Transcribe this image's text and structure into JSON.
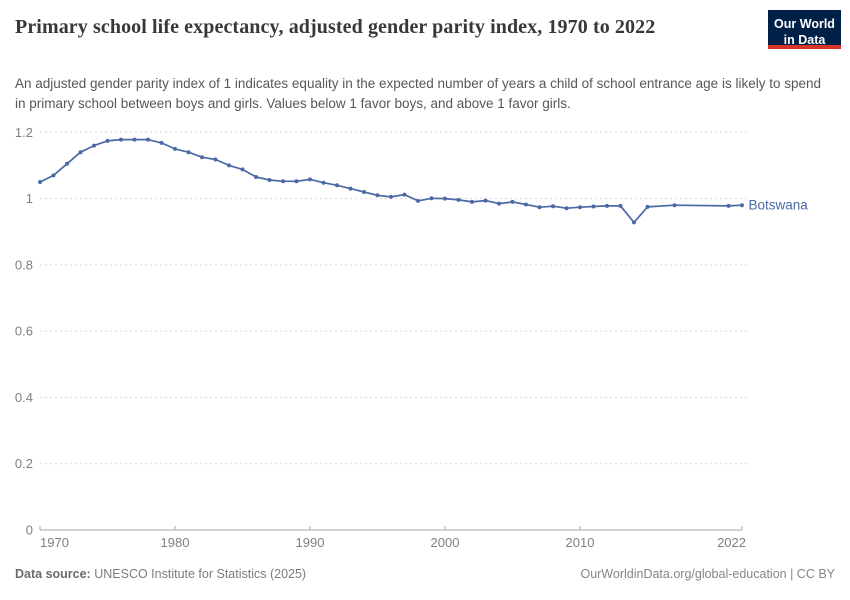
{
  "header": {
    "title": "Primary school life expectancy, adjusted gender parity index, 1970 to 2022",
    "subtitle": "An adjusted gender parity index of 1 indicates equality in the expected number of years a child of school entrance age is likely to spend in primary school between boys and girls. Values below 1 favor boys, and above 1 favor girls."
  },
  "logo": {
    "line1": "Our World",
    "line2": "in Data",
    "bg_color": "#002147",
    "bar_color": "#d8352a"
  },
  "chart_data": {
    "type": "line",
    "title": "Primary school life expectancy, adjusted gender parity index, 1970 to 2022",
    "xlabel": "",
    "ylabel": "",
    "xlim": [
      1970,
      2022
    ],
    "ylim": [
      0,
      1.2
    ],
    "xticks": [
      1970,
      1980,
      1990,
      2000,
      2010,
      2022
    ],
    "yticks": [
      0,
      0.2,
      0.4,
      0.6,
      0.8,
      1,
      1.2
    ],
    "grid": "horizontal-dashed",
    "legend_position": "label-at-line-end",
    "series": [
      {
        "name": "Botswana",
        "color": "#4a69a5",
        "points": [
          [
            1970,
            1.05
          ],
          [
            1971,
            1.07
          ],
          [
            1972,
            1.105
          ],
          [
            1973,
            1.14
          ],
          [
            1974,
            1.16
          ],
          [
            1975,
            1.174
          ],
          [
            1976,
            1.178
          ],
          [
            1977,
            1.178
          ],
          [
            1978,
            1.178
          ],
          [
            1979,
            1.168
          ],
          [
            1980,
            1.15
          ],
          [
            1981,
            1.14
          ],
          [
            1982,
            1.125
          ],
          [
            1983,
            1.118
          ],
          [
            1984,
            1.1
          ],
          [
            1985,
            1.088
          ],
          [
            1986,
            1.065
          ],
          [
            1987,
            1.056
          ],
          [
            1988,
            1.052
          ],
          [
            1989,
            1.052
          ],
          [
            1990,
            1.058
          ],
          [
            1991,
            1.048
          ],
          [
            1992,
            1.04
          ],
          [
            1993,
            1.03
          ],
          [
            1994,
            1.02
          ],
          [
            1995,
            1.01
          ],
          [
            1996,
            1.005
          ],
          [
            1997,
            1.012
          ],
          [
            1998,
            0.993
          ],
          [
            1999,
            1.001
          ],
          [
            2000,
            1.0
          ],
          [
            2001,
            0.996
          ],
          [
            2002,
            0.99
          ],
          [
            2003,
            0.994
          ],
          [
            2004,
            0.985
          ],
          [
            2005,
            0.99
          ],
          [
            2006,
            0.982
          ],
          [
            2007,
            0.974
          ],
          [
            2008,
            0.977
          ],
          [
            2009,
            0.971
          ],
          [
            2010,
            0.974
          ],
          [
            2011,
            0.976
          ],
          [
            2012,
            0.978
          ],
          [
            2013,
            0.978
          ],
          [
            2014,
            0.928
          ],
          [
            2015,
            0.975
          ],
          [
            2017,
            0.98
          ],
          [
            2021,
            0.978
          ],
          [
            2022,
            0.98
          ]
        ]
      }
    ]
  },
  "footer": {
    "source_label": "Data source:",
    "source_text": "UNESCO Institute for Statistics (2025)",
    "credit": "OurWorldinData.org/global-education | CC BY"
  },
  "colors": {
    "line": "#4a69a5",
    "grid": "#d9d9d9",
    "axis": "#a5a5a5",
    "tick_label": "#808080",
    "title": "#383838",
    "subtitle": "#575757",
    "footer": "#7c7c7c"
  }
}
